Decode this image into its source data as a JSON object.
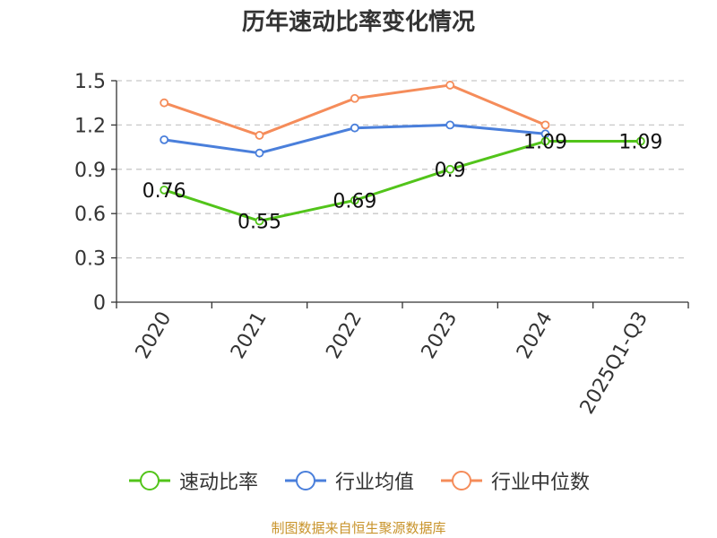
{
  "chart_data": {
    "type": "line",
    "title": "历年速动比率变化情况",
    "categories": [
      "2020",
      "2021",
      "2022",
      "2023",
      "2024",
      "2025Q1-Q3"
    ],
    "ylim": [
      0,
      1.5
    ],
    "yticks": [
      "0",
      "0.3",
      "0.6",
      "0.9",
      "1.2",
      "1.5"
    ],
    "grid": true,
    "legend_position": "bottom",
    "series": [
      {
        "name": "速动比率",
        "color": "#52c41a",
        "values": [
          0.76,
          0.55,
          0.69,
          0.9,
          1.09,
          1.09
        ],
        "labels": [
          "0.76",
          "0.55",
          "0.69",
          "0.9",
          "1.09",
          "1.09"
        ]
      },
      {
        "name": "行业均值",
        "color": "#4a7fdb",
        "values": [
          1.1,
          1.01,
          1.18,
          1.2,
          1.14,
          null
        ]
      },
      {
        "name": "行业中位数",
        "color": "#f58c5a",
        "values": [
          1.35,
          1.13,
          1.38,
          1.47,
          1.2,
          null
        ]
      }
    ]
  },
  "source_note": "制图数据来自恒生聚源数据库"
}
